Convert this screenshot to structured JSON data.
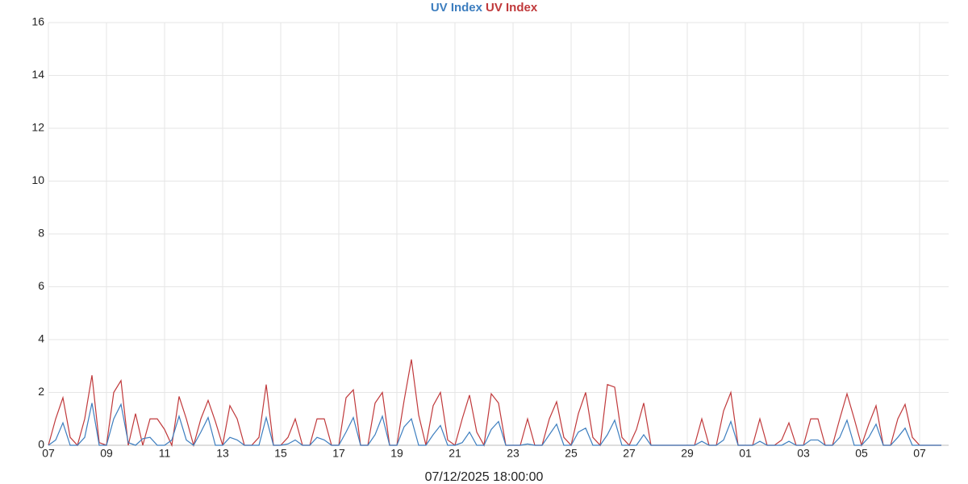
{
  "chart_data": {
    "type": "line",
    "x_label": "07/12/2025 18:00:00",
    "xlim": [
      0,
      31
    ],
    "xticks": [
      {
        "value": 0,
        "label": "07"
      },
      {
        "value": 2,
        "label": "09"
      },
      {
        "value": 4,
        "label": "11"
      },
      {
        "value": 6,
        "label": "13"
      },
      {
        "value": 8,
        "label": "15"
      },
      {
        "value": 10,
        "label": "17"
      },
      {
        "value": 12,
        "label": "19"
      },
      {
        "value": 14,
        "label": "21"
      },
      {
        "value": 16,
        "label": "23"
      },
      {
        "value": 18,
        "label": "25"
      },
      {
        "value": 20,
        "label": "27"
      },
      {
        "value": 22,
        "label": "29"
      },
      {
        "value": 24,
        "label": "01"
      },
      {
        "value": 26,
        "label": "03"
      },
      {
        "value": 28,
        "label": "05"
      },
      {
        "value": 30,
        "label": "07"
      }
    ],
    "ylim": [
      0,
      16
    ],
    "yticks": [
      0,
      2,
      4,
      6,
      8,
      10,
      12,
      14,
      16
    ],
    "grid": true,
    "x": [
      0,
      0.25,
      0.5,
      0.75,
      1,
      1.25,
      1.5,
      1.75,
      2,
      2.25,
      2.5,
      2.75,
      3,
      3.25,
      3.5,
      3.75,
      4,
      4.25,
      4.5,
      4.75,
      5,
      5.25,
      5.5,
      5.75,
      6,
      6.25,
      6.5,
      6.75,
      7,
      7.25,
      7.5,
      7.75,
      8,
      8.25,
      8.5,
      8.75,
      9,
      9.25,
      9.5,
      9.75,
      10,
      10.25,
      10.5,
      10.75,
      11,
      11.25,
      11.5,
      11.75,
      12,
      12.25,
      12.5,
      12.75,
      13,
      13.25,
      13.5,
      13.75,
      14,
      14.25,
      14.5,
      14.75,
      15,
      15.25,
      15.5,
      15.75,
      16,
      16.25,
      16.5,
      16.75,
      17,
      17.25,
      17.5,
      17.75,
      18,
      18.25,
      18.5,
      18.75,
      19,
      19.25,
      19.5,
      19.75,
      20,
      20.25,
      20.5,
      20.75,
      21,
      21.25,
      21.5,
      21.75,
      22,
      22.25,
      22.5,
      22.75,
      23,
      23.25,
      23.5,
      23.75,
      24,
      24.25,
      24.5,
      24.75,
      25,
      25.25,
      25.5,
      25.75,
      26,
      26.25,
      26.5,
      26.75,
      27,
      27.25,
      27.5,
      27.75,
      28,
      28.25,
      28.5,
      28.75,
      29,
      29.25,
      29.5,
      29.75,
      30,
      30.25,
      30.5,
      30.75
    ],
    "series": [
      {
        "name": "UV Index",
        "color": "#3d7ebf",
        "values": [
          0,
          0.2,
          0.85,
          0,
          0,
          0.3,
          1.6,
          0,
          0,
          1.0,
          1.55,
          0.1,
          0,
          0.25,
          0.3,
          0,
          0,
          0.2,
          1.1,
          0.2,
          0,
          0.5,
          1.05,
          0,
          0,
          0.3,
          0.2,
          0,
          0,
          0,
          1.05,
          0,
          0,
          0.05,
          0.2,
          0,
          0,
          0.3,
          0.2,
          0,
          0,
          0.5,
          1.05,
          0,
          0,
          0.4,
          1.1,
          0,
          0,
          0.7,
          1.0,
          0,
          0,
          0.4,
          0.75,
          0,
          0,
          0.1,
          0.5,
          0,
          0,
          0.6,
          0.9,
          0,
          0,
          0,
          0.05,
          0,
          0,
          0.4,
          0.8,
          0,
          0,
          0.5,
          0.65,
          0,
          0,
          0.4,
          0.95,
          0,
          0,
          0,
          0.4,
          0,
          0,
          0,
          0,
          0,
          0,
          0,
          0.15,
          0,
          0,
          0.2,
          0.9,
          0,
          0,
          0,
          0.15,
          0,
          0,
          0,
          0.15,
          0,
          0,
          0.2,
          0.2,
          0,
          0,
          0.3,
          0.95,
          0,
          0,
          0.3,
          0.8,
          0,
          0,
          0.3,
          0.65,
          0,
          0,
          0,
          0,
          0
        ]
      },
      {
        "name": "UV Index",
        "color": "#c0393b",
        "values": [
          0,
          1.0,
          1.8,
          0.3,
          0,
          1.0,
          2.65,
          0.1,
          0,
          2.0,
          2.45,
          0,
          1.2,
          0,
          1.0,
          1.0,
          0.6,
          0,
          1.85,
          1.0,
          0,
          1.0,
          1.7,
          0.9,
          0,
          1.5,
          1.0,
          0,
          0,
          0.3,
          2.3,
          0,
          0,
          0.3,
          1.0,
          0,
          0,
          1.0,
          1.0,
          0,
          0,
          1.8,
          2.1,
          0,
          0,
          1.6,
          2.0,
          0,
          0,
          1.7,
          3.25,
          1.15,
          0,
          1.5,
          2.0,
          0.2,
          0,
          1.0,
          1.9,
          0.5,
          0,
          1.95,
          1.6,
          0,
          0,
          0,
          1.0,
          0,
          0,
          1.0,
          1.65,
          0.3,
          0,
          1.2,
          2.0,
          0.3,
          0,
          2.3,
          2.2,
          0.3,
          0,
          0.6,
          1.6,
          0,
          0,
          0,
          0,
          0,
          0,
          0,
          1.0,
          0,
          0,
          1.3,
          2.0,
          0,
          0,
          0,
          1.0,
          0,
          0,
          0.2,
          0.85,
          0,
          0,
          1.0,
          1.0,
          0,
          0,
          1.0,
          1.95,
          1.0,
          0,
          0.8,
          1.5,
          0,
          0,
          1.0,
          1.55,
          0.3,
          0,
          0,
          0,
          0
        ]
      }
    ]
  }
}
